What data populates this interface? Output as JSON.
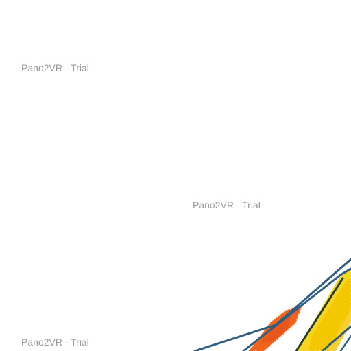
{
  "viewer": {
    "watermarks": [
      "Pano2VR - Trial",
      "Pano2VR - Trial",
      "Pano2VR - Trial"
    ]
  },
  "colors": {
    "background": "#ffffff",
    "watermark_text": "#9a9a9a",
    "sketch_blue": "#2e5d82",
    "sketch_dark": "#1f3b33",
    "sketch_orange": "#f0641e",
    "sketch_yellow": "#f7d51a"
  }
}
